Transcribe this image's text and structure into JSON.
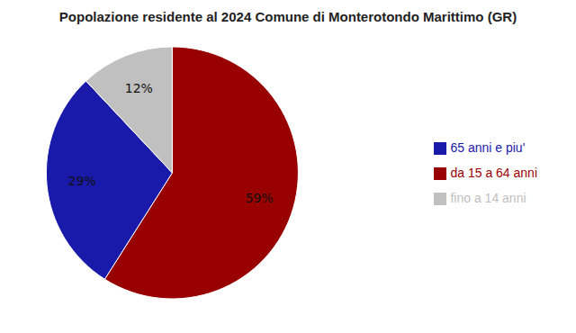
{
  "chart_data": {
    "type": "pie",
    "title": "Popolazione residente al 2024 Comune di Monterotondo Marittimo (GR)",
    "categories": [
      "da 15 a 64 anni",
      "65 anni e piu'",
      "fino a 14 anni"
    ],
    "values": [
      59,
      29,
      12
    ],
    "value_labels": [
      "59%",
      "29%",
      "12%"
    ],
    "colors": [
      "#990000",
      "#1a1aaa",
      "#c0c0c0"
    ],
    "data_labels": true,
    "legend": "right"
  }
}
